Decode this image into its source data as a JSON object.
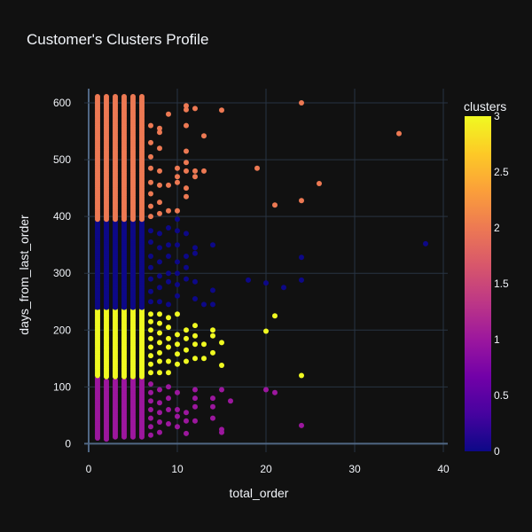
{
  "chart_data": {
    "type": "scatter",
    "title": "Customer's Clusters Profile",
    "xlabel": "total_order",
    "ylabel": "days_from_last_order",
    "xlim": [
      -0.5,
      40.5
    ],
    "ylim": [
      -15,
      625
    ],
    "xticks": [
      0,
      10,
      20,
      30,
      40
    ],
    "yticks": [
      0,
      100,
      200,
      300,
      400,
      500,
      600
    ],
    "grid": true,
    "colorbar": {
      "title": "clusters",
      "range": [
        0,
        3
      ],
      "ticks": [
        "0",
        "0.5",
        "1",
        "1.5",
        "2",
        "2.5",
        "3"
      ],
      "colorscale": [
        "#0d0887",
        "#46039f",
        "#7201a8",
        "#9c179e",
        "#bd3786",
        "#d8576b",
        "#ed7953",
        "#fb9f3a",
        "#fdca26",
        "#f0f921"
      ]
    },
    "dense_columns": [
      {
        "x": 1,
        "ranges": [
          [
            10,
            115,
            1
          ],
          [
            120,
            235,
            3
          ],
          [
            240,
            390,
            0
          ],
          [
            395,
            612,
            2
          ]
        ]
      },
      {
        "x": 2,
        "ranges": [
          [
            8,
            112,
            1
          ],
          [
            118,
            236,
            3
          ],
          [
            240,
            392,
            0
          ],
          [
            395,
            613,
            2
          ]
        ]
      },
      {
        "x": 3,
        "ranges": [
          [
            12,
            112,
            1
          ],
          [
            118,
            236,
            3
          ],
          [
            240,
            390,
            0
          ],
          [
            395,
            612,
            2
          ]
        ]
      },
      {
        "x": 4,
        "ranges": [
          [
            12,
            113,
            1
          ],
          [
            118,
            235,
            3
          ],
          [
            240,
            390,
            0
          ],
          [
            395,
            612,
            2
          ]
        ]
      },
      {
        "x": 5,
        "ranges": [
          [
            12,
            115,
            1
          ],
          [
            118,
            236,
            3
          ],
          [
            240,
            390,
            0
          ],
          [
            395,
            612,
            2
          ]
        ]
      },
      {
        "x": 6,
        "ranges": [
          [
            12,
            115,
            1
          ],
          [
            118,
            236,
            3
          ],
          [
            240,
            390,
            0
          ],
          [
            395,
            612,
            2
          ]
        ]
      }
    ],
    "points": [
      [
        7,
        15,
        1
      ],
      [
        7,
        30,
        1
      ],
      [
        7,
        45,
        1
      ],
      [
        7,
        60,
        1
      ],
      [
        7,
        75,
        1
      ],
      [
        7,
        90,
        1
      ],
      [
        7,
        105,
        1
      ],
      [
        7,
        125,
        3
      ],
      [
        7,
        140,
        3
      ],
      [
        7,
        155,
        3
      ],
      [
        7,
        170,
        3
      ],
      [
        7,
        185,
        3
      ],
      [
        7,
        200,
        3
      ],
      [
        7,
        215,
        3
      ],
      [
        7,
        228,
        3
      ],
      [
        7,
        250,
        0
      ],
      [
        7,
        268,
        0
      ],
      [
        7,
        290,
        0
      ],
      [
        7,
        310,
        0
      ],
      [
        7,
        330,
        0
      ],
      [
        7,
        355,
        0
      ],
      [
        7,
        375,
        0
      ],
      [
        7,
        400,
        2
      ],
      [
        7,
        418,
        2
      ],
      [
        7,
        440,
        2
      ],
      [
        7,
        460,
        2
      ],
      [
        7,
        485,
        2
      ],
      [
        7,
        505,
        2
      ],
      [
        7,
        530,
        2
      ],
      [
        7,
        560,
        2
      ],
      [
        8,
        20,
        1
      ],
      [
        8,
        38,
        1
      ],
      [
        8,
        55,
        1
      ],
      [
        8,
        72,
        1
      ],
      [
        8,
        95,
        1
      ],
      [
        8,
        125,
        3
      ],
      [
        8,
        145,
        3
      ],
      [
        8,
        160,
        3
      ],
      [
        8,
        178,
        3
      ],
      [
        8,
        195,
        3
      ],
      [
        8,
        212,
        3
      ],
      [
        8,
        228,
        3
      ],
      [
        8,
        250,
        0
      ],
      [
        8,
        275,
        0
      ],
      [
        8,
        295,
        0
      ],
      [
        8,
        320,
        0
      ],
      [
        8,
        345,
        0
      ],
      [
        8,
        370,
        0
      ],
      [
        8,
        405,
        2
      ],
      [
        8,
        425,
        2
      ],
      [
        8,
        455,
        2
      ],
      [
        8,
        480,
        2
      ],
      [
        8,
        520,
        2
      ],
      [
        8,
        548,
        2
      ],
      [
        8,
        555,
        2
      ],
      [
        9,
        35,
        1
      ],
      [
        9,
        60,
        1
      ],
      [
        9,
        80,
        1
      ],
      [
        9,
        100,
        1
      ],
      [
        9,
        125,
        3
      ],
      [
        9,
        145,
        3
      ],
      [
        9,
        170,
        3
      ],
      [
        9,
        185,
        3
      ],
      [
        9,
        205,
        3
      ],
      [
        9,
        222,
        3
      ],
      [
        9,
        245,
        0
      ],
      [
        9,
        285,
        0
      ],
      [
        9,
        300,
        0
      ],
      [
        9,
        330,
        0
      ],
      [
        9,
        350,
        0
      ],
      [
        9,
        380,
        0
      ],
      [
        9,
        410,
        2
      ],
      [
        9,
        455,
        2
      ],
      [
        9,
        580,
        2
      ],
      [
        10,
        30,
        1
      ],
      [
        10,
        48,
        1
      ],
      [
        10,
        60,
        1
      ],
      [
        10,
        90,
        1
      ],
      [
        10,
        140,
        3
      ],
      [
        10,
        158,
        3
      ],
      [
        10,
        175,
        3
      ],
      [
        10,
        192,
        3
      ],
      [
        10,
        228,
        3
      ],
      [
        10,
        260,
        0
      ],
      [
        10,
        280,
        0
      ],
      [
        10,
        300,
        0
      ],
      [
        10,
        320,
        0
      ],
      [
        10,
        350,
        0
      ],
      [
        10,
        375,
        0
      ],
      [
        10,
        395,
        0
      ],
      [
        10,
        410,
        2
      ],
      [
        10,
        460,
        2
      ],
      [
        10,
        470,
        2
      ],
      [
        10,
        485,
        2
      ],
      [
        11,
        18,
        1
      ],
      [
        11,
        40,
        1
      ],
      [
        11,
        55,
        1
      ],
      [
        11,
        145,
        3
      ],
      [
        11,
        165,
        3
      ],
      [
        11,
        185,
        3
      ],
      [
        11,
        200,
        3
      ],
      [
        11,
        290,
        0
      ],
      [
        11,
        310,
        0
      ],
      [
        11,
        330,
        0
      ],
      [
        11,
        370,
        0
      ],
      [
        11,
        435,
        2
      ],
      [
        11,
        450,
        2
      ],
      [
        11,
        480,
        2
      ],
      [
        11,
        495,
        2
      ],
      [
        11,
        515,
        2
      ],
      [
        11,
        560,
        2
      ],
      [
        11,
        588,
        2
      ],
      [
        11,
        595,
        2
      ],
      [
        12,
        40,
        1
      ],
      [
        12,
        65,
        1
      ],
      [
        12,
        80,
        1
      ],
      [
        12,
        95,
        1
      ],
      [
        12,
        150,
        3
      ],
      [
        12,
        175,
        3
      ],
      [
        12,
        190,
        3
      ],
      [
        12,
        208,
        3
      ],
      [
        12,
        255,
        0
      ],
      [
        12,
        285,
        0
      ],
      [
        12,
        335,
        0
      ],
      [
        12,
        345,
        0
      ],
      [
        12,
        470,
        2
      ],
      [
        12,
        480,
        2
      ],
      [
        12,
        590,
        2
      ],
      [
        13,
        150,
        3
      ],
      [
        13,
        175,
        3
      ],
      [
        13,
        245,
        0
      ],
      [
        13,
        480,
        2
      ],
      [
        13,
        542,
        2
      ],
      [
        14,
        45,
        1
      ],
      [
        14,
        65,
        1
      ],
      [
        14,
        80,
        1
      ],
      [
        14,
        160,
        3
      ],
      [
        14,
        190,
        3
      ],
      [
        14,
        200,
        3
      ],
      [
        14,
        245,
        0
      ],
      [
        14,
        270,
        0
      ],
      [
        14,
        350,
        0
      ],
      [
        15,
        20,
        1
      ],
      [
        15,
        25,
        1
      ],
      [
        15,
        95,
        1
      ],
      [
        15,
        138,
        3
      ],
      [
        15,
        178,
        3
      ],
      [
        15,
        587,
        2
      ],
      [
        16,
        75,
        1
      ],
      [
        18,
        288,
        0
      ],
      [
        19,
        485,
        2
      ],
      [
        20,
        95,
        1
      ],
      [
        20,
        198,
        3
      ],
      [
        20,
        283,
        0
      ],
      [
        21,
        90,
        1
      ],
      [
        21,
        225,
        3
      ],
      [
        21,
        420,
        2
      ],
      [
        22,
        275,
        0
      ],
      [
        24,
        32,
        1
      ],
      [
        24,
        120,
        3
      ],
      [
        24,
        288,
        0
      ],
      [
        24,
        328,
        0
      ],
      [
        24,
        428,
        2
      ],
      [
        24,
        600,
        2
      ],
      [
        26,
        458,
        2
      ],
      [
        35,
        546,
        2
      ],
      [
        38,
        352,
        0
      ]
    ]
  }
}
